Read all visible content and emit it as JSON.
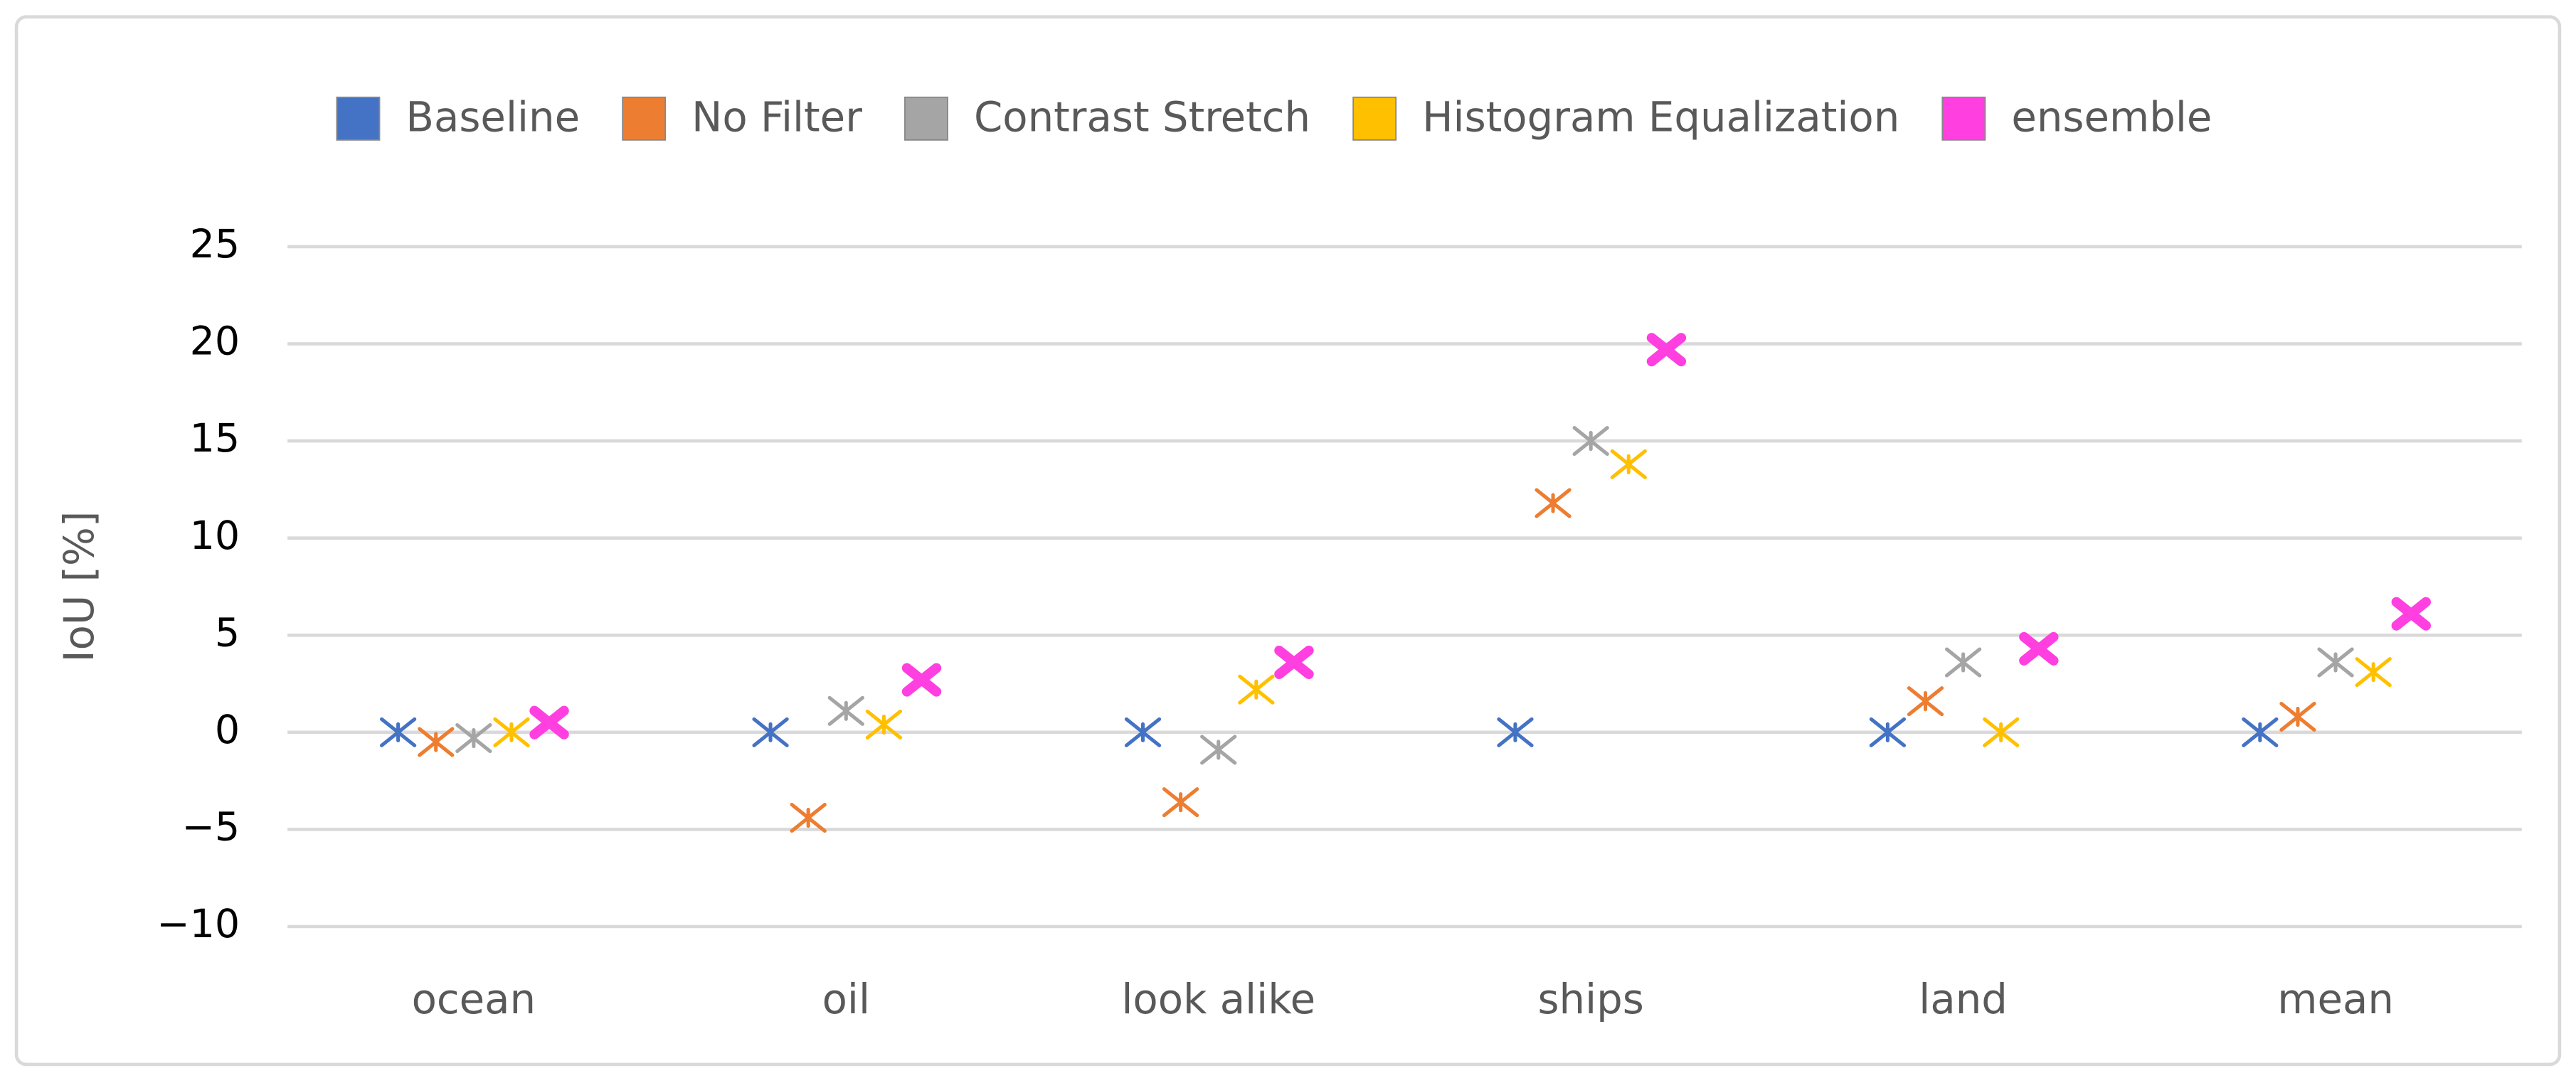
{
  "chart_data": {
    "type": "scatter",
    "y_label": "IoU [%]",
    "categories": [
      "ocean",
      "oil",
      "look alike",
      "ships",
      "land",
      "mean"
    ],
    "series": [
      {
        "name": "Baseline",
        "color": "#4472c4",
        "values": [
          0,
          0,
          0,
          0,
          0,
          0
        ]
      },
      {
        "name": "No Filter",
        "color": "#ed7d31",
        "values": [
          -0.5,
          -4.4,
          -3.6,
          11.8,
          1.6,
          0.8
        ]
      },
      {
        "name": "Contrast Stretch",
        "color": "#a5a5a5",
        "values": [
          -0.3,
          1.1,
          -0.9,
          15,
          3.6,
          3.6
        ]
      },
      {
        "name": "Histogram Equalization",
        "color": "#ffc000",
        "values": [
          0,
          0.4,
          2.2,
          13.8,
          0,
          3.1
        ]
      },
      {
        "name": "ensemble",
        "color": "#ff3fe0",
        "values": [
          0.5,
          2.7,
          3.6,
          19.7,
          4.3,
          6.1
        ]
      }
    ],
    "ylim": [
      -10,
      25
    ],
    "yticks": [
      {
        "value": -10,
        "label": "−10"
      },
      {
        "value": -5,
        "label": "−5"
      },
      0,
      5,
      10,
      15,
      20,
      25
    ],
    "grid": true,
    "legend": "top"
  }
}
